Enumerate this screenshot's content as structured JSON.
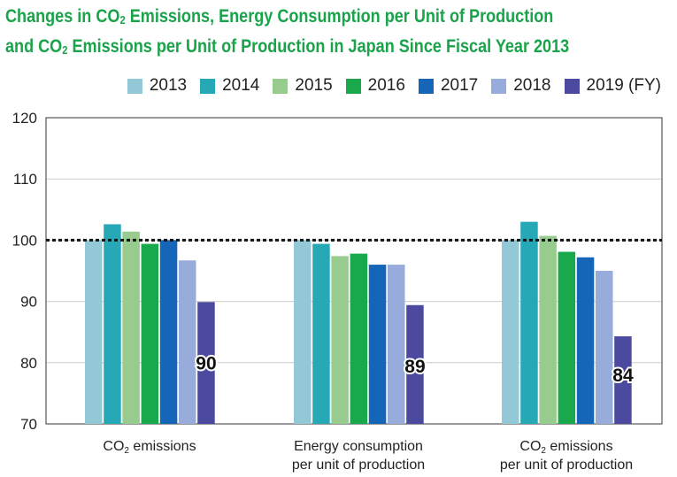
{
  "title": {
    "line1_pre": "Changes in CO",
    "line1_sub": "2",
    "line1_post": " Emissions, Energy Consumption per Unit of Production",
    "line2_pre": "and CO",
    "line2_sub": "2",
    "line2_post": " Emissions per Unit of Production in Japan Since Fiscal Year 2013"
  },
  "colors": {
    "title": "#1aa34a",
    "baseline": "#111111",
    "grid": "#cccccc"
  },
  "chart_data": {
    "type": "bar",
    "title": "Changes in CO2 Emissions, Energy Consumption per Unit of Production and CO2 Emissions per Unit of Production in Japan Since Fiscal Year 2013",
    "ylim": [
      70,
      120
    ],
    "yticks": [
      "70",
      "80",
      "90",
      "100",
      "110",
      "120"
    ],
    "grid": true,
    "legend_position": "top-right",
    "reference_line": 100,
    "categories": [
      {
        "line1_pre": "CO",
        "line1_sub": "2",
        "line1_post": " emissions",
        "line2": ""
      },
      {
        "line1_pre": "Energy consumption",
        "line1_sub": "",
        "line1_post": "",
        "line2": "per unit of production"
      },
      {
        "line1_pre": "CO",
        "line1_sub": "2",
        "line1_post": " emissions",
        "line2": "per unit of production"
      }
    ],
    "series": [
      {
        "name": "2013",
        "color": "#93c9d6",
        "values": [
          100,
          100,
          100
        ]
      },
      {
        "name": "2014",
        "color": "#27a8b6",
        "values": [
          102.6,
          99.4,
          103.0
        ]
      },
      {
        "name": "2015",
        "color": "#97cc8e",
        "values": [
          101.4,
          97.4,
          100.7
        ]
      },
      {
        "name": "2016",
        "color": "#19a84b",
        "values": [
          99.4,
          97.8,
          98.1
        ]
      },
      {
        "name": "2017",
        "color": "#1565b8",
        "values": [
          100.0,
          96.0,
          97.2
        ]
      },
      {
        "name": "2018",
        "color": "#97acda",
        "values": [
          96.7,
          96.0,
          95.0
        ]
      },
      {
        "name": "2019 (FY)",
        "color": "#4b4a9e",
        "values": [
          89.9,
          89.4,
          84.3
        ]
      }
    ],
    "data_labels": [
      "90",
      "89",
      "84"
    ]
  }
}
